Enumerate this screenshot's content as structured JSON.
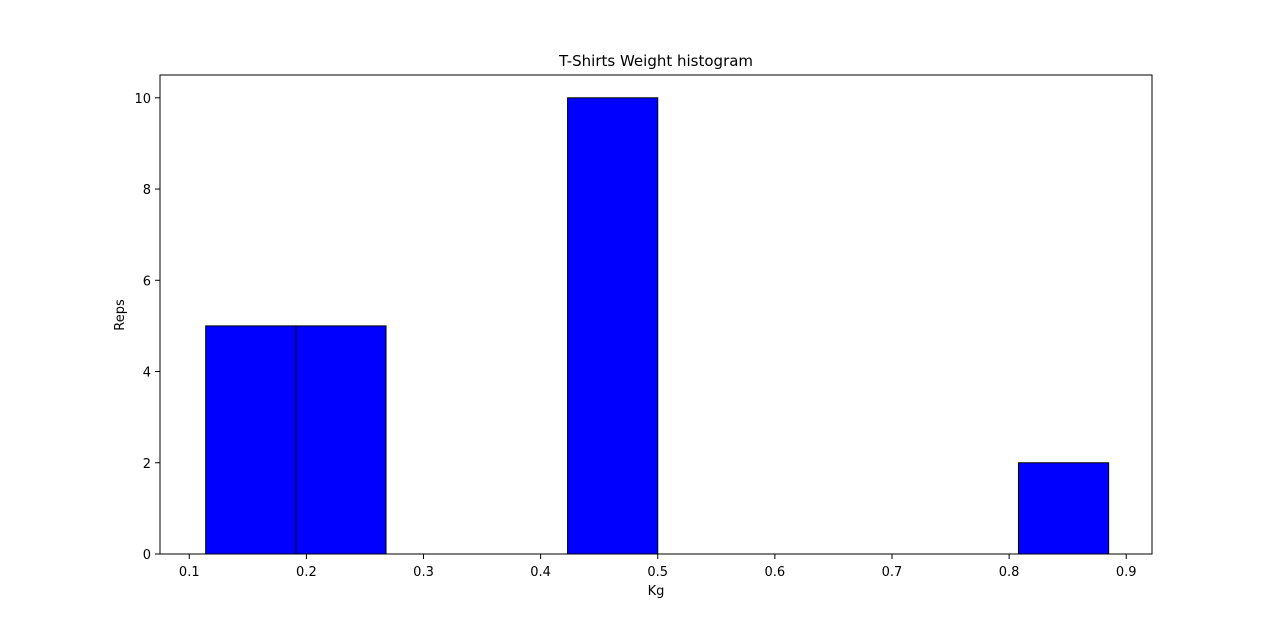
{
  "chart_data": {
    "type": "bar",
    "title": "T-Shirts Weight histogram",
    "xlabel": "Kg",
    "ylabel": "Reps",
    "xlim": [
      0.075,
      0.922
    ],
    "ylim": [
      0,
      10.5
    ],
    "xticks": [
      "0.1",
      "0.2",
      "0.3",
      "0.4",
      "0.5",
      "0.6",
      "0.7",
      "0.8",
      "0.9"
    ],
    "yticks": [
      "0",
      "2",
      "4",
      "6",
      "8",
      "10"
    ],
    "grid": false,
    "bins": [
      {
        "start": 0.114,
        "end": 0.191,
        "count": 5
      },
      {
        "start": 0.191,
        "end": 0.268,
        "count": 5
      },
      {
        "start": 0.268,
        "end": 0.345,
        "count": 0
      },
      {
        "start": 0.345,
        "end": 0.423,
        "count": 0
      },
      {
        "start": 0.423,
        "end": 0.5,
        "count": 10
      },
      {
        "start": 0.5,
        "end": 0.577,
        "count": 0
      },
      {
        "start": 0.577,
        "end": 0.654,
        "count": 0
      },
      {
        "start": 0.654,
        "end": 0.731,
        "count": 0
      },
      {
        "start": 0.731,
        "end": 0.808,
        "count": 0
      },
      {
        "start": 0.808,
        "end": 0.885,
        "count": 2
      }
    ],
    "colors": {
      "bar_fill": "#0000ff",
      "bar_edge": "#000000"
    }
  }
}
